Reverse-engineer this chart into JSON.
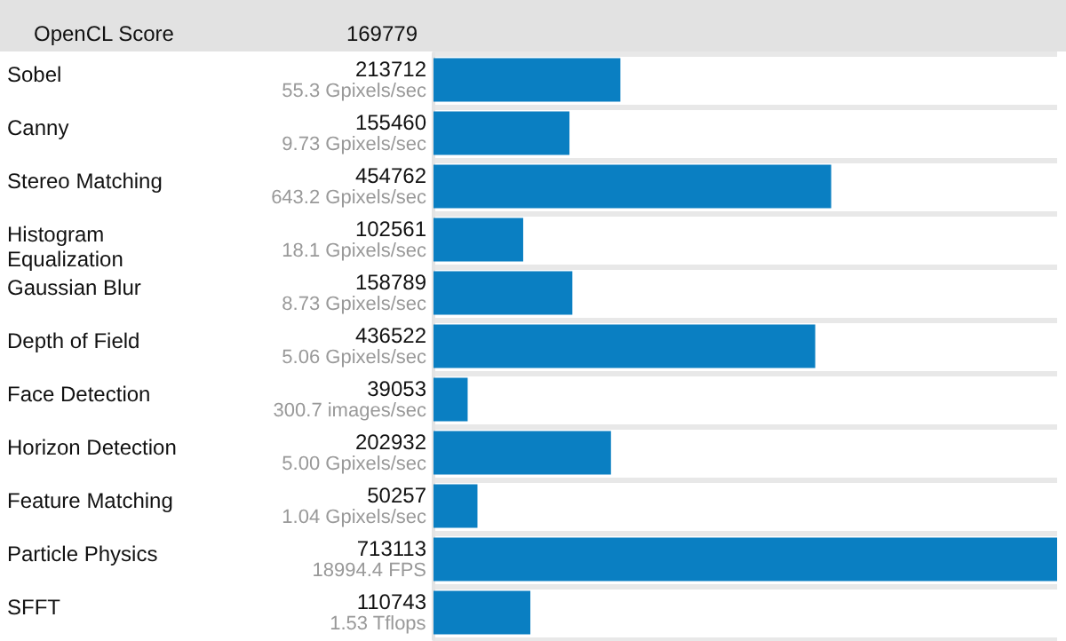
{
  "chart_data": {
    "type": "bar",
    "orientation": "horizontal",
    "title": "OpenCL Score",
    "subtitle": "169779",
    "categories": [
      "Sobel",
      "Canny",
      "Stereo Matching",
      "Histogram Equalization",
      "Gaussian Blur",
      "Depth of Field",
      "Face Detection",
      "Horizon Detection",
      "Feature Matching",
      "Particle Physics",
      "SFFT"
    ],
    "values": [
      213712,
      155460,
      454762,
      102561,
      158789,
      436522,
      39053,
      202932,
      50257,
      713113,
      110743
    ],
    "color": "#0a7fc2",
    "data_labels": true,
    "grid": "y",
    "annotations": [
      "55.3 Gpixels/sec",
      "9.73 Gpixels/sec",
      "643.2 Gpixels/sec",
      "18.1 Gpixels/sec",
      "8.73 Gpixels/sec",
      "5.06 Gpixels/sec",
      "300.7 images/sec",
      "5.00 Gpixels/sec",
      "1.04 Gpixels/sec",
      "18994.4 FPS",
      "1.53 Tflops"
    ]
  }
}
